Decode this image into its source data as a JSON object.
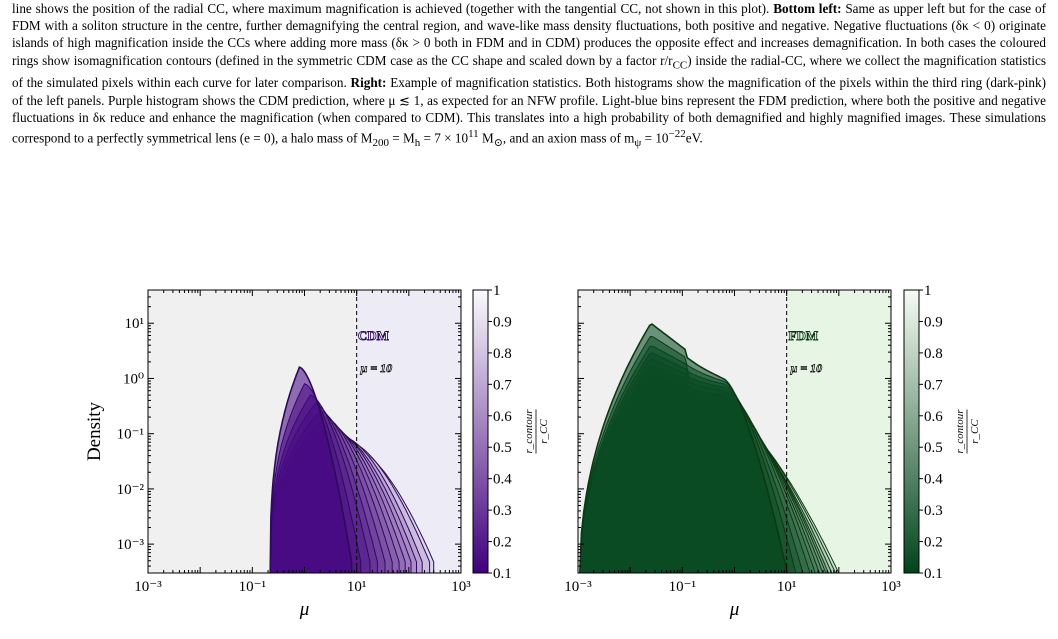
{
  "caption": {
    "p1": "line shows the position of the radial CC, where maximum magnification is achieved (together with the tangential CC, not shown in this plot).",
    "h_bottom_left": "Bottom left:",
    "p2": "Same as upper left but for the case of FDM with a soliton structure in the centre, further demagnifying the central region, and wave-like mass density fluctuations, both positive and negative. Negative fluctuations (δκ < 0) originate islands of high magnification inside the CCs where adding more mass (δκ > 0 both in FDM and in CDM) produces the opposite effect and increases demagnification. In both cases the coloured rings show isomagnification contours (defined in the symmetric CDM case as the CC shape and scaled down by a factor r/r",
    "p2_sub": "CC",
    "p2b": ") inside the radial-CC, where we collect the magnification statistics of the simulated pixels within each curve for later comparison.",
    "h_right": "Right:",
    "p3": "Example of magnification statistics. Both histograms show the magnification of the pixels within the third ring (dark-pink) of the left panels. Purple histogram shows the CDM prediction, where μ ≲ 1, as expected for an NFW profile. Light-blue bins represent the FDM prediction, where both the positive and negative fluctuations in δκ reduce and enhance the magnification (when compared to CDM). This translates into a high probability of both demagnified and highly magnified images. These simulations correspond to a perfectly symmetrical lens (e = 0), a halo mass of M",
    "p3_sub1": "200",
    "p3_mid": " = M",
    "p3_sub2": "h",
    "p3_mid2": " = 7 × 10",
    "p3_sup1": "11",
    "p3_mid3": " M",
    "p3_sub3": "⊙",
    "p3_mid4": ", and an axion mass of m",
    "p3_sub4": "ψ",
    "p3_mid5": " = 10",
    "p3_sup2": "−22",
    "p3_end": "eV."
  },
  "chart_data": [
    {
      "type": "area",
      "panel_label": "CDM",
      "annotation": "μ = 10",
      "vline_x": 10,
      "xlabel": "μ",
      "ylabel": "Density",
      "xscale": "log",
      "yscale": "log",
      "xlim": [
        0.001,
        1000
      ],
      "ylim": [
        0.0003,
        40
      ],
      "x_tick_labels": [
        "10⁻³",
        "10⁻¹",
        "10¹",
        "10³"
      ],
      "y_tick_labels": [
        "10⁻³",
        "10⁻²",
        "10⁻¹",
        "10⁰",
        "10¹"
      ],
      "colorbar_label": "r_contour / r_CC",
      "colorbar_ticks": [
        "0.1",
        "0.2",
        "0.3",
        "0.4",
        "0.5",
        "0.6",
        "0.7",
        "0.8",
        "0.9",
        "1"
      ],
      "colormap": "purples",
      "shaded_region": "μ > 10",
      "curves": [
        {
          "r": 0.1,
          "mu_peak": 0.8,
          "peak": 1.6,
          "mu_max": 8
        },
        {
          "r": 0.15,
          "mu_peak": 1.0,
          "peak": 0.8,
          "mu_max": 12
        },
        {
          "r": 0.2,
          "mu_peak": 1.3,
          "peak": 0.5,
          "mu_max": 18
        },
        {
          "r": 0.25,
          "mu_peak": 1.6,
          "peak": 0.35,
          "mu_max": 25
        },
        {
          "r": 0.3,
          "mu_peak": 2.0,
          "peak": 0.26,
          "mu_max": 35
        },
        {
          "r": 0.35,
          "mu_peak": 2.5,
          "peak": 0.2,
          "mu_max": 48
        },
        {
          "r": 0.4,
          "mu_peak": 3.0,
          "peak": 0.16,
          "mu_max": 65
        },
        {
          "r": 0.45,
          "mu_peak": 3.6,
          "peak": 0.13,
          "mu_max": 85
        },
        {
          "r": 0.5,
          "mu_peak": 4.3,
          "peak": 0.11,
          "mu_max": 110
        },
        {
          "r": 0.55,
          "mu_peak": 5.0,
          "peak": 0.095,
          "mu_max": 140
        },
        {
          "r": 0.6,
          "mu_peak": 6.0,
          "peak": 0.085,
          "mu_max": 180
        },
        {
          "r": 0.7,
          "mu_peak": 7.5,
          "peak": 0.07,
          "mu_max": 250
        },
        {
          "r": 0.8,
          "mu_peak": 9.0,
          "peak": 0.055,
          "mu_max": 300
        }
      ]
    },
    {
      "type": "area",
      "panel_label": "FDM",
      "annotation": "μ = 10",
      "vline_x": 10,
      "xlabel": "μ",
      "ylabel": "",
      "xscale": "log",
      "yscale": "log",
      "xlim": [
        0.001,
        1000
      ],
      "ylim": [
        0.0003,
        40
      ],
      "x_tick_labels": [
        "10⁻³",
        "10⁻¹",
        "10¹",
        "10³"
      ],
      "colorbar_label": "r_contour / r_CC",
      "colorbar_ticks": [
        "0.1",
        "0.2",
        "0.3",
        "0.4",
        "0.5",
        "0.6",
        "0.7",
        "0.8",
        "0.9",
        "1"
      ],
      "colormap": "greens",
      "shaded_region": "μ > 10",
      "curves": [
        {
          "r": 0.1,
          "peak1": 10,
          "peak2": 1.0,
          "mu_max": 12
        },
        {
          "r": 0.15,
          "peak1": 6.0,
          "peak2": 0.9,
          "mu_max": 18
        },
        {
          "r": 0.2,
          "peak1": 4.0,
          "peak2": 0.8,
          "mu_max": 25
        },
        {
          "r": 0.25,
          "peak1": 3.0,
          "peak2": 0.7,
          "mu_max": 35
        },
        {
          "r": 0.3,
          "peak1": 2.3,
          "peak2": 0.6,
          "mu_max": 45
        },
        {
          "r": 0.35,
          "peak1": 1.8,
          "peak2": 0.5,
          "mu_max": 55
        },
        {
          "r": 0.4,
          "peak1": 1.5,
          "peak2": 0.45,
          "mu_max": 65
        },
        {
          "r": 0.45,
          "peak1": 1.2,
          "peak2": 0.4,
          "mu_max": 75
        },
        {
          "r": 0.5,
          "peak1": 1.0,
          "peak2": 0.35,
          "mu_max": 85
        },
        {
          "r": 0.6,
          "peak1": 0.85,
          "peak2": 0.3,
          "mu_max": 100
        },
        {
          "r": 0.7,
          "peak1": 0.7,
          "peak2": 0.28,
          "mu_max": 120
        },
        {
          "r": 0.8,
          "peak1": 0.6,
          "peak2": 0.26,
          "mu_max": 140
        }
      ]
    }
  ]
}
